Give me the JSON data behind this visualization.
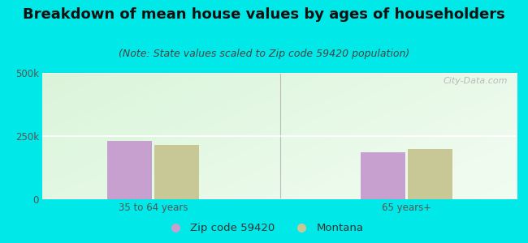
{
  "title": "Breakdown of mean house values by ages of householders",
  "subtitle": "(Note: State values scaled to Zip code 59420 population)",
  "categories": [
    "35 to 64 years",
    "65 years+"
  ],
  "zip_values": [
    232000,
    185000
  ],
  "montana_values": [
    215000,
    200000
  ],
  "zip_color": "#c8a0d0",
  "montana_color": "#c8c896",
  "ylim": [
    0,
    500000
  ],
  "yticks": [
    0,
    250000,
    500000
  ],
  "ytick_labels": [
    "0",
    "250k",
    "500k"
  ],
  "background_color": "#00e8e8",
  "plot_bg_color_topleft": "#d0ecd0",
  "plot_bg_color_bottomright": "#f5fff5",
  "legend_zip_label": "Zip code 59420",
  "legend_montana_label": "Montana",
  "bar_width": 0.28,
  "title_fontsize": 13,
  "subtitle_fontsize": 9,
  "tick_fontsize": 8.5,
  "legend_fontsize": 9.5,
  "divider_x": 1.5,
  "x_positions": [
    0.7,
    2.3
  ],
  "xlim": [
    0.0,
    3.0
  ]
}
